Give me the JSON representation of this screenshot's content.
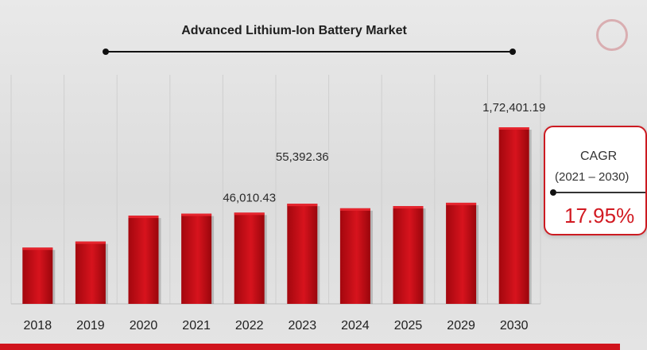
{
  "chart_data": {
    "type": "bar",
    "title": "Advanced Lithium-Ion Battery Market",
    "categories": [
      "2018",
      "2019",
      "2020",
      "2021",
      "2022",
      "2023",
      "2024",
      "2025",
      "2029",
      "2030"
    ],
    "values": [
      17500,
      21500,
      43000,
      45000,
      46010.43,
      55392.36,
      50500,
      52800,
      56500,
      172401.19
    ],
    "data_labels": [
      {
        "category": "2022",
        "text": "46,010.43"
      },
      {
        "category": "2023",
        "text": "55,392.36"
      },
      {
        "category": "2030",
        "text": "1,72,401.19"
      }
    ],
    "xlabel": "",
    "ylabel": "",
    "grid": true,
    "bar_color": "#c90d16"
  },
  "cagr": {
    "label": "CAGR",
    "period": "(2021 – 2030)",
    "value": "17.95%"
  },
  "colors": {
    "accent": "#d0141c",
    "background": "#e4e4e4"
  }
}
